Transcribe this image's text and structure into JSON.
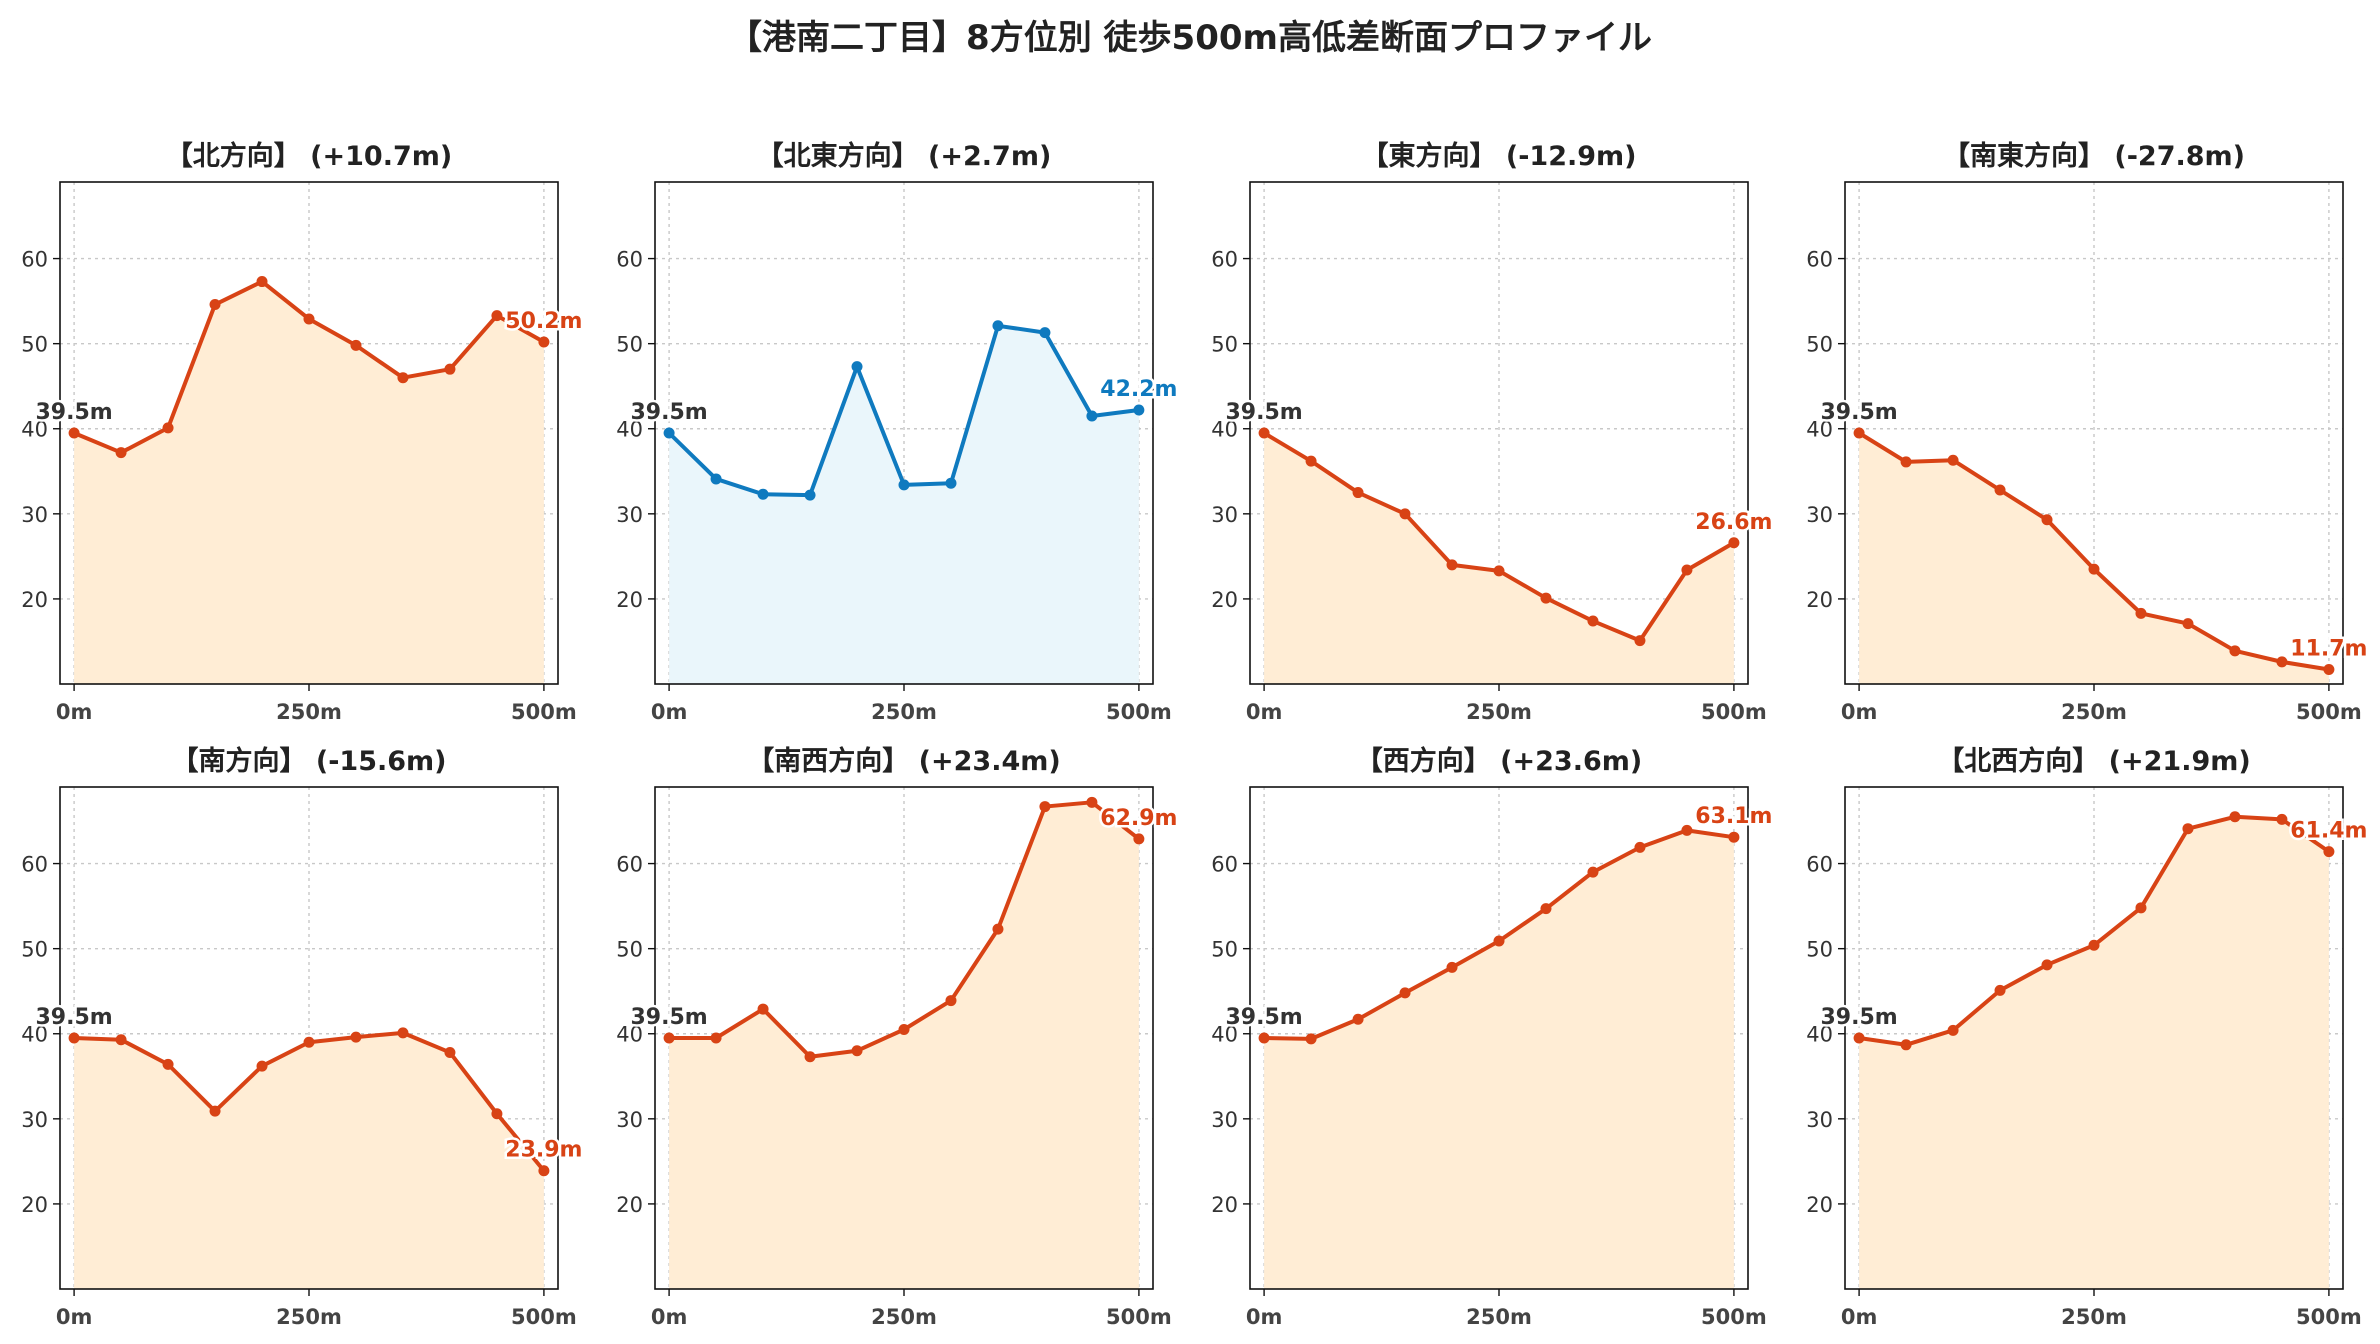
{
  "figure": {
    "title": "【港南二丁目】8方位別 徒歩500m高低差断面プロファイル"
  },
  "colors": {
    "line_default": "#d84315",
    "fill_default": "#ffedd5",
    "line_highlight": "#0f7abf",
    "fill_highlight": "#eaf6fb",
    "start_label": "#333333",
    "axis_text": "#333333",
    "grid": "#c8c8c8"
  },
  "chart_data": [
    {
      "type": "area",
      "title": "【北方向】 (+10.7m)",
      "x": [
        0,
        50,
        100,
        150,
        200,
        250,
        300,
        350,
        400,
        450,
        500
      ],
      "values": [
        39.5,
        37.2,
        40.1,
        54.6,
        57.3,
        52.9,
        49.8,
        46.0,
        47.0,
        53.3,
        50.2
      ],
      "xticks": [
        "0m",
        "250m",
        "500m"
      ],
      "yticks": [
        20,
        30,
        40,
        50,
        60
      ],
      "xlim": [
        -15,
        515
      ],
      "ylim": [
        10,
        69
      ],
      "start_label": "39.5m",
      "end_label": "50.2m",
      "highlight": false,
      "grid": true
    },
    {
      "type": "area",
      "title": "【北東方向】 (+2.7m)",
      "x": [
        0,
        50,
        100,
        150,
        200,
        250,
        300,
        350,
        400,
        450,
        500
      ],
      "values": [
        39.5,
        34.1,
        32.3,
        32.2,
        47.3,
        33.4,
        33.6,
        52.1,
        51.3,
        41.5,
        42.2
      ],
      "xticks": [
        "0m",
        "250m",
        "500m"
      ],
      "yticks": [
        20,
        30,
        40,
        50,
        60
      ],
      "xlim": [
        -15,
        515
      ],
      "ylim": [
        10,
        69
      ],
      "start_label": "39.5m",
      "end_label": "42.2m",
      "highlight": true,
      "grid": true
    },
    {
      "type": "area",
      "title": "【東方向】 (-12.9m)",
      "x": [
        0,
        50,
        100,
        150,
        200,
        250,
        300,
        350,
        400,
        450,
        500
      ],
      "values": [
        39.5,
        36.2,
        32.5,
        30.0,
        24.0,
        23.3,
        20.1,
        17.4,
        15.1,
        23.4,
        26.6
      ],
      "xticks": [
        "0m",
        "250m",
        "500m"
      ],
      "yticks": [
        20,
        30,
        40,
        50,
        60
      ],
      "xlim": [
        -15,
        515
      ],
      "ylim": [
        10,
        69
      ],
      "start_label": "39.5m",
      "end_label": "26.6m",
      "highlight": false,
      "grid": true
    },
    {
      "type": "area",
      "title": "【南東方向】 (-27.8m)",
      "x": [
        0,
        50,
        100,
        150,
        200,
        250,
        300,
        350,
        400,
        450,
        500
      ],
      "values": [
        39.5,
        36.1,
        36.3,
        32.8,
        29.3,
        23.5,
        18.3,
        17.1,
        13.9,
        12.6,
        11.7
      ],
      "xticks": [
        "0m",
        "250m",
        "500m"
      ],
      "yticks": [
        20,
        30,
        40,
        50,
        60
      ],
      "xlim": [
        -15,
        515
      ],
      "ylim": [
        10,
        69
      ],
      "start_label": "39.5m",
      "end_label": "11.7m",
      "highlight": false,
      "grid": true
    },
    {
      "type": "area",
      "title": "【南方向】 (-15.6m)",
      "x": [
        0,
        50,
        100,
        150,
        200,
        250,
        300,
        350,
        400,
        450,
        500
      ],
      "values": [
        39.5,
        39.3,
        36.4,
        30.9,
        36.2,
        39.0,
        39.6,
        40.1,
        37.8,
        30.6,
        23.9
      ],
      "xticks": [
        "0m",
        "250m",
        "500m"
      ],
      "yticks": [
        20,
        30,
        40,
        50,
        60
      ],
      "xlim": [
        -15,
        515
      ],
      "ylim": [
        10,
        69
      ],
      "start_label": "39.5m",
      "end_label": "23.9m",
      "highlight": false,
      "grid": true
    },
    {
      "type": "area",
      "title": "【南西方向】 (+23.4m)",
      "x": [
        0,
        50,
        100,
        150,
        200,
        250,
        300,
        350,
        400,
        450,
        500
      ],
      "values": [
        39.5,
        39.5,
        42.9,
        37.3,
        38.0,
        40.5,
        43.9,
        52.3,
        66.7,
        67.2,
        62.9
      ],
      "xticks": [
        "0m",
        "250m",
        "500m"
      ],
      "yticks": [
        20,
        30,
        40,
        50,
        60
      ],
      "xlim": [
        -15,
        515
      ],
      "ylim": [
        10,
        69
      ],
      "start_label": "39.5m",
      "end_label": "62.9m",
      "highlight": false,
      "grid": true
    },
    {
      "type": "area",
      "title": "【西方向】 (+23.6m)",
      "x": [
        0,
        50,
        100,
        150,
        200,
        250,
        300,
        350,
        400,
        450,
        500
      ],
      "values": [
        39.5,
        39.4,
        41.7,
        44.8,
        47.8,
        50.9,
        54.7,
        59.0,
        61.9,
        63.9,
        63.1
      ],
      "xticks": [
        "0m",
        "250m",
        "500m"
      ],
      "yticks": [
        20,
        30,
        40,
        50,
        60
      ],
      "xlim": [
        -15,
        515
      ],
      "ylim": [
        10,
        69
      ],
      "start_label": "39.5m",
      "end_label": "63.1m",
      "highlight": false,
      "grid": true
    },
    {
      "type": "area",
      "title": "【北西方向】 (+21.9m)",
      "x": [
        0,
        50,
        100,
        150,
        200,
        250,
        300,
        350,
        400,
        450,
        500
      ],
      "values": [
        39.5,
        38.7,
        40.4,
        45.1,
        48.1,
        50.4,
        54.8,
        64.1,
        65.5,
        65.2,
        61.4
      ],
      "xticks": [
        "0m",
        "250m",
        "500m"
      ],
      "yticks": [
        20,
        30,
        40,
        50,
        60
      ],
      "xlim": [
        -15,
        515
      ],
      "ylim": [
        10,
        69
      ],
      "start_label": "39.5m",
      "end_label": "61.4m",
      "highlight": false,
      "grid": true
    }
  ]
}
